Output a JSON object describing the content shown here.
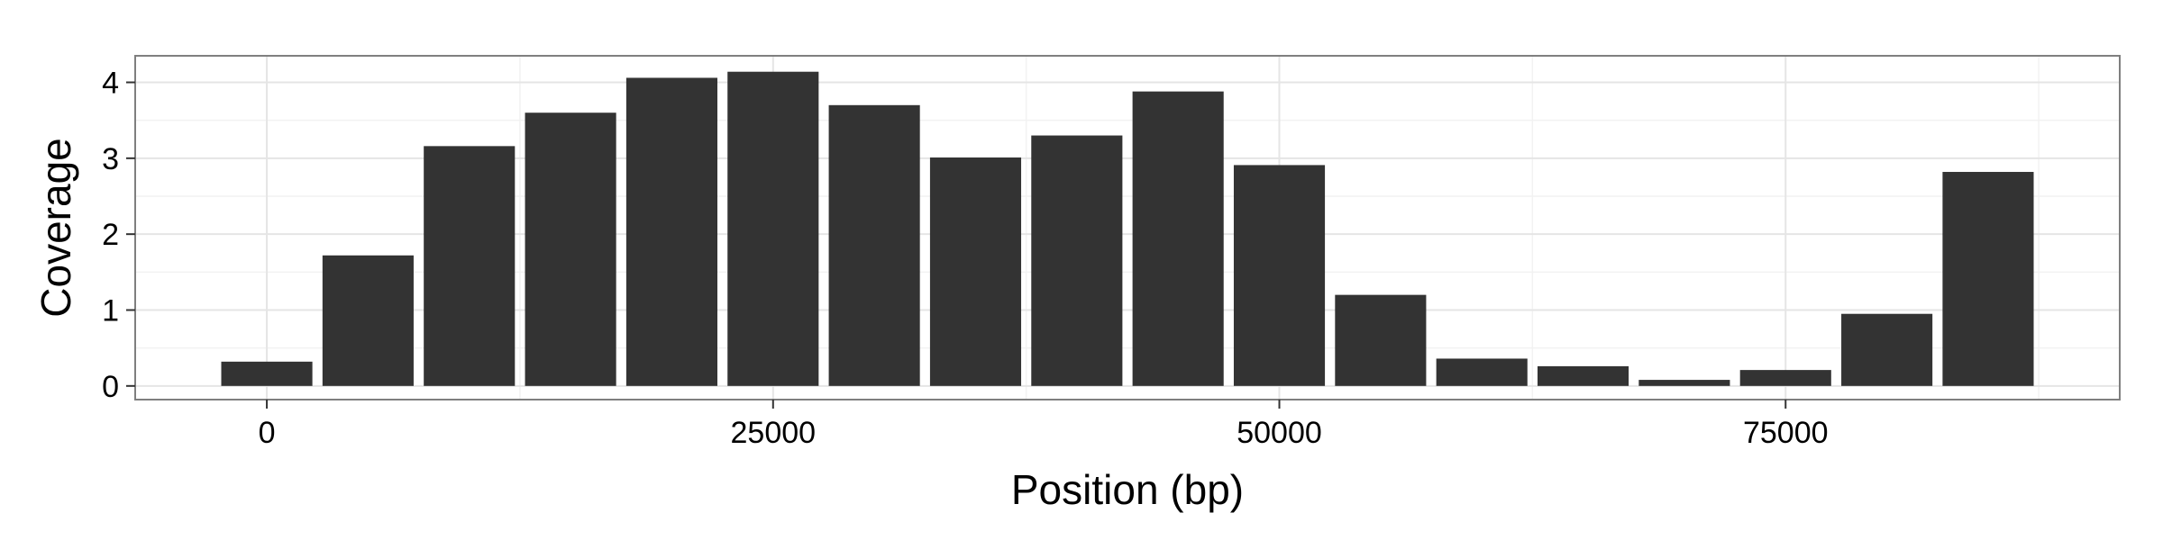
{
  "chart_data": {
    "type": "bar",
    "xlabel": "Position (bp)",
    "ylabel": "Coverage",
    "x": [
      0,
      5000,
      10000,
      15000,
      20000,
      25000,
      30000,
      35000,
      40000,
      45000,
      50000,
      55000,
      60000,
      65000,
      70000,
      75000,
      80000,
      85000
    ],
    "values": [
      0.32,
      1.72,
      3.16,
      3.6,
      4.06,
      4.14,
      3.7,
      3.01,
      3.3,
      3.88,
      2.91,
      1.2,
      0.36,
      0.26,
      0.08,
      0.21,
      0.95,
      2.82
    ],
    "bin_width": 5000,
    "xlim": [
      -6500,
      91500
    ],
    "ylim": [
      -0.18,
      4.35
    ],
    "x_ticks": [
      0,
      25000,
      50000,
      75000
    ],
    "x_tick_labels": [
      "0",
      "25000",
      "50000",
      "75000"
    ],
    "y_ticks": [
      0,
      1,
      2,
      3,
      4
    ],
    "y_tick_labels": [
      "0",
      "1",
      "2",
      "3",
      "4"
    ],
    "grid": true,
    "legend": "none",
    "bar_color": "#333333",
    "panel_border_color": "#7f7f7f",
    "grid_major_color": "#e5e5e5",
    "grid_minor_color": "#f2f2f2"
  }
}
